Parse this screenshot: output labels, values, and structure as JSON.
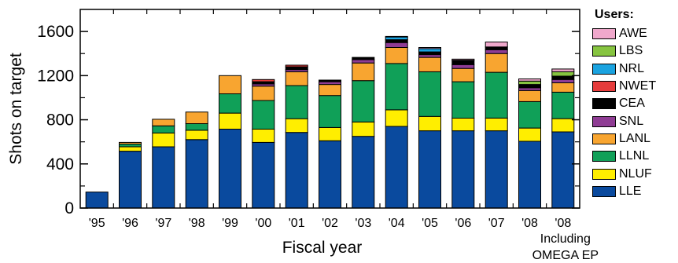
{
  "chart_data": {
    "type": "bar",
    "stacked": true,
    "xlabel": "Fiscal year",
    "ylabel": "Shots on target",
    "ylim": [
      0,
      1800
    ],
    "yticks": [
      0,
      400,
      800,
      1200,
      1600
    ],
    "grid": false,
    "legend_title": "Users:",
    "legend_position": "right",
    "categories": [
      "'95",
      "'96",
      "'97",
      "'98",
      "'99",
      "'00",
      "'01",
      "'02",
      "'03",
      "'04",
      "'05",
      "'06",
      "'07",
      "'08",
      "'08"
    ],
    "category_sublabels": [
      "",
      "",
      "",
      "",
      "",
      "",
      "",
      "",
      "",
      "",
      "",
      "",
      "",
      "",
      "Including OMEGA EP"
    ],
    "series": [
      {
        "name": "LLE",
        "color": "#0a4a9e",
        "values": [
          145,
          515,
          555,
          620,
          715,
          595,
          685,
          610,
          650,
          740,
          700,
          700,
          700,
          605,
          690
        ]
      },
      {
        "name": "NLUF",
        "color": "#ffee00",
        "values": [
          0,
          40,
          125,
          85,
          145,
          120,
          125,
          120,
          130,
          150,
          130,
          115,
          115,
          120,
          120
        ]
      },
      {
        "name": "LLNL",
        "color": "#10a058",
        "values": [
          0,
          25,
          65,
          60,
          175,
          260,
          300,
          290,
          375,
          420,
          405,
          330,
          415,
          240,
          240
        ]
      },
      {
        "name": "LANL",
        "color": "#f8a530",
        "values": [
          0,
          15,
          60,
          105,
          165,
          130,
          125,
          100,
          160,
          145,
          130,
          120,
          170,
          100,
          85
        ]
      },
      {
        "name": "SNL",
        "color": "#8f3c94",
        "values": [
          0,
          0,
          0,
          0,
          0,
          20,
          20,
          25,
          30,
          45,
          25,
          35,
          35,
          25,
          30
        ]
      },
      {
        "name": "CEA",
        "color": "#000000",
        "values": [
          0,
          0,
          0,
          0,
          0,
          20,
          25,
          15,
          20,
          25,
          25,
          40,
          25,
          30,
          30
        ]
      },
      {
        "name": "NWET",
        "color": "#e63c3c",
        "values": [
          0,
          0,
          0,
          0,
          0,
          20,
          15,
          0,
          0,
          0,
          0,
          0,
          0,
          0,
          0
        ]
      },
      {
        "name": "NRL",
        "color": "#1aa3e0",
        "values": [
          0,
          0,
          0,
          0,
          0,
          0,
          0,
          0,
          0,
          25,
          30,
          0,
          0,
          0,
          0
        ]
      },
      {
        "name": "LBS",
        "color": "#86c440",
        "values": [
          0,
          0,
          0,
          0,
          0,
          0,
          0,
          0,
          0,
          0,
          0,
          0,
          0,
          30,
          40
        ]
      },
      {
        "name": "AWE",
        "color": "#f0a8cc",
        "values": [
          0,
          0,
          0,
          0,
          0,
          0,
          0,
          0,
          0,
          5,
          10,
          10,
          45,
          20,
          25
        ]
      }
    ]
  }
}
